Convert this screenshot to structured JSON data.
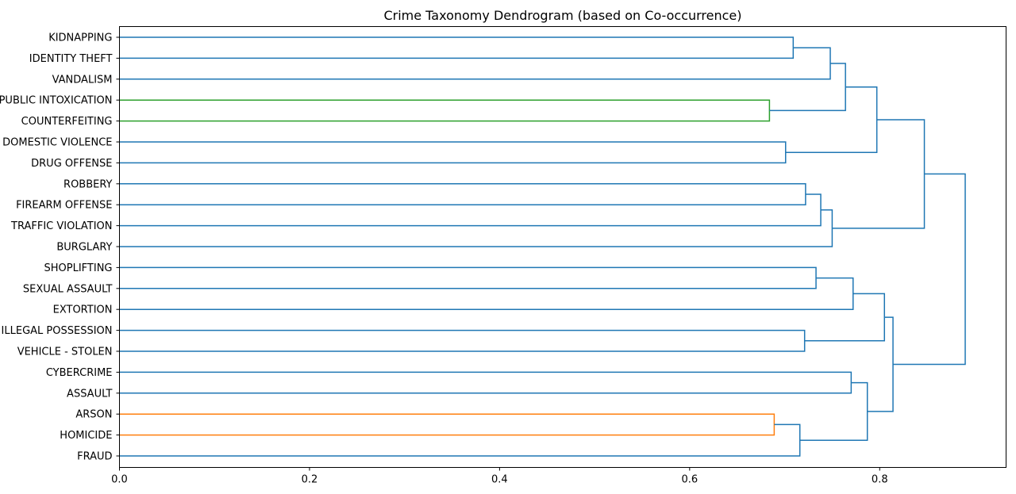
{
  "chart_data": {
    "type": "dendrogram",
    "title": "Crime Taxonomy Dendrogram (based on Co-occurrence)",
    "xlabel": "",
    "ylabel": "",
    "orientation": "left",
    "xlim": [
      0,
      0.933
    ],
    "xticks": [
      0.0,
      0.2,
      0.4,
      0.6,
      0.8
    ],
    "xtick_labels": [
      "0.0",
      "0.2",
      "0.4",
      "0.6",
      "0.8"
    ],
    "grid": false,
    "leaves": [
      "KIDNAPPING",
      "IDENTITY THEFT",
      "VANDALISM",
      "PUBLIC INTOXICATION",
      "COUNTERFEITING",
      "DOMESTIC VIOLENCE",
      "DRUG OFFENSE",
      "ROBBERY",
      "FIREARM OFFENSE",
      "TRAFFIC VIOLATION",
      "BURGLARY",
      "SHOPLIFTING",
      "SEXUAL ASSAULT",
      "EXTORTION",
      "ILLEGAL POSSESSION",
      "VEHICLE - STOLEN",
      "CYBERCRIME",
      "ASSAULT",
      "ARSON",
      "HOMICIDE",
      "FRAUD"
    ],
    "colors": {
      "default": "#1f77b4",
      "cluster_green": "#2ca02c",
      "cluster_orange": "#ff7f0e"
    },
    "merges": [
      {
        "id": "n1",
        "children": [
          "KIDNAPPING",
          "IDENTITY THEFT"
        ],
        "height": 0.709,
        "color": "default"
      },
      {
        "id": "n2",
        "children": [
          "n1",
          "VANDALISM"
        ],
        "height": 0.748,
        "color": "default"
      },
      {
        "id": "n3",
        "children": [
          "PUBLIC INTOXICATION",
          "COUNTERFEITING"
        ],
        "height": 0.684,
        "color": "cluster_green"
      },
      {
        "id": "n4",
        "children": [
          "n2",
          "n3"
        ],
        "height": 0.764,
        "color": "default"
      },
      {
        "id": "n5",
        "children": [
          "DOMESTIC VIOLENCE",
          "DRUG OFFENSE"
        ],
        "height": 0.701,
        "color": "default"
      },
      {
        "id": "n6",
        "children": [
          "n4",
          "n5"
        ],
        "height": 0.797,
        "color": "default"
      },
      {
        "id": "n7",
        "children": [
          "ROBBERY",
          "FIREARM OFFENSE"
        ],
        "height": 0.722,
        "color": "default"
      },
      {
        "id": "n8",
        "children": [
          "n7",
          "TRAFFIC VIOLATION"
        ],
        "height": 0.738,
        "color": "default"
      },
      {
        "id": "n9",
        "children": [
          "n8",
          "BURGLARY"
        ],
        "height": 0.75,
        "color": "default"
      },
      {
        "id": "n10",
        "children": [
          "n6",
          "n9"
        ],
        "height": 0.847,
        "color": "default"
      },
      {
        "id": "n11",
        "children": [
          "SHOPLIFTING",
          "SEXUAL ASSAULT"
        ],
        "height": 0.733,
        "color": "default"
      },
      {
        "id": "n12",
        "children": [
          "n11",
          "EXTORTION"
        ],
        "height": 0.772,
        "color": "default"
      },
      {
        "id": "n13",
        "children": [
          "ILLEGAL POSSESSION",
          "VEHICLE - STOLEN"
        ],
        "height": 0.721,
        "color": "default"
      },
      {
        "id": "n14",
        "children": [
          "n12",
          "n13"
        ],
        "height": 0.805,
        "color": "default"
      },
      {
        "id": "n15",
        "children": [
          "CYBERCRIME",
          "ASSAULT"
        ],
        "height": 0.77,
        "color": "default"
      },
      {
        "id": "n16",
        "children": [
          "ARSON",
          "HOMICIDE"
        ],
        "height": 0.689,
        "color": "cluster_orange"
      },
      {
        "id": "n17",
        "children": [
          "n16",
          "FRAUD"
        ],
        "height": 0.716,
        "color": "default"
      },
      {
        "id": "n18",
        "children": [
          "n15",
          "n17"
        ],
        "height": 0.787,
        "color": "default"
      },
      {
        "id": "n19",
        "children": [
          "n14",
          "n18"
        ],
        "height": 0.814,
        "color": "default"
      },
      {
        "id": "n20",
        "children": [
          "n10",
          "n19"
        ],
        "height": 0.89,
        "color": "default"
      }
    ]
  }
}
